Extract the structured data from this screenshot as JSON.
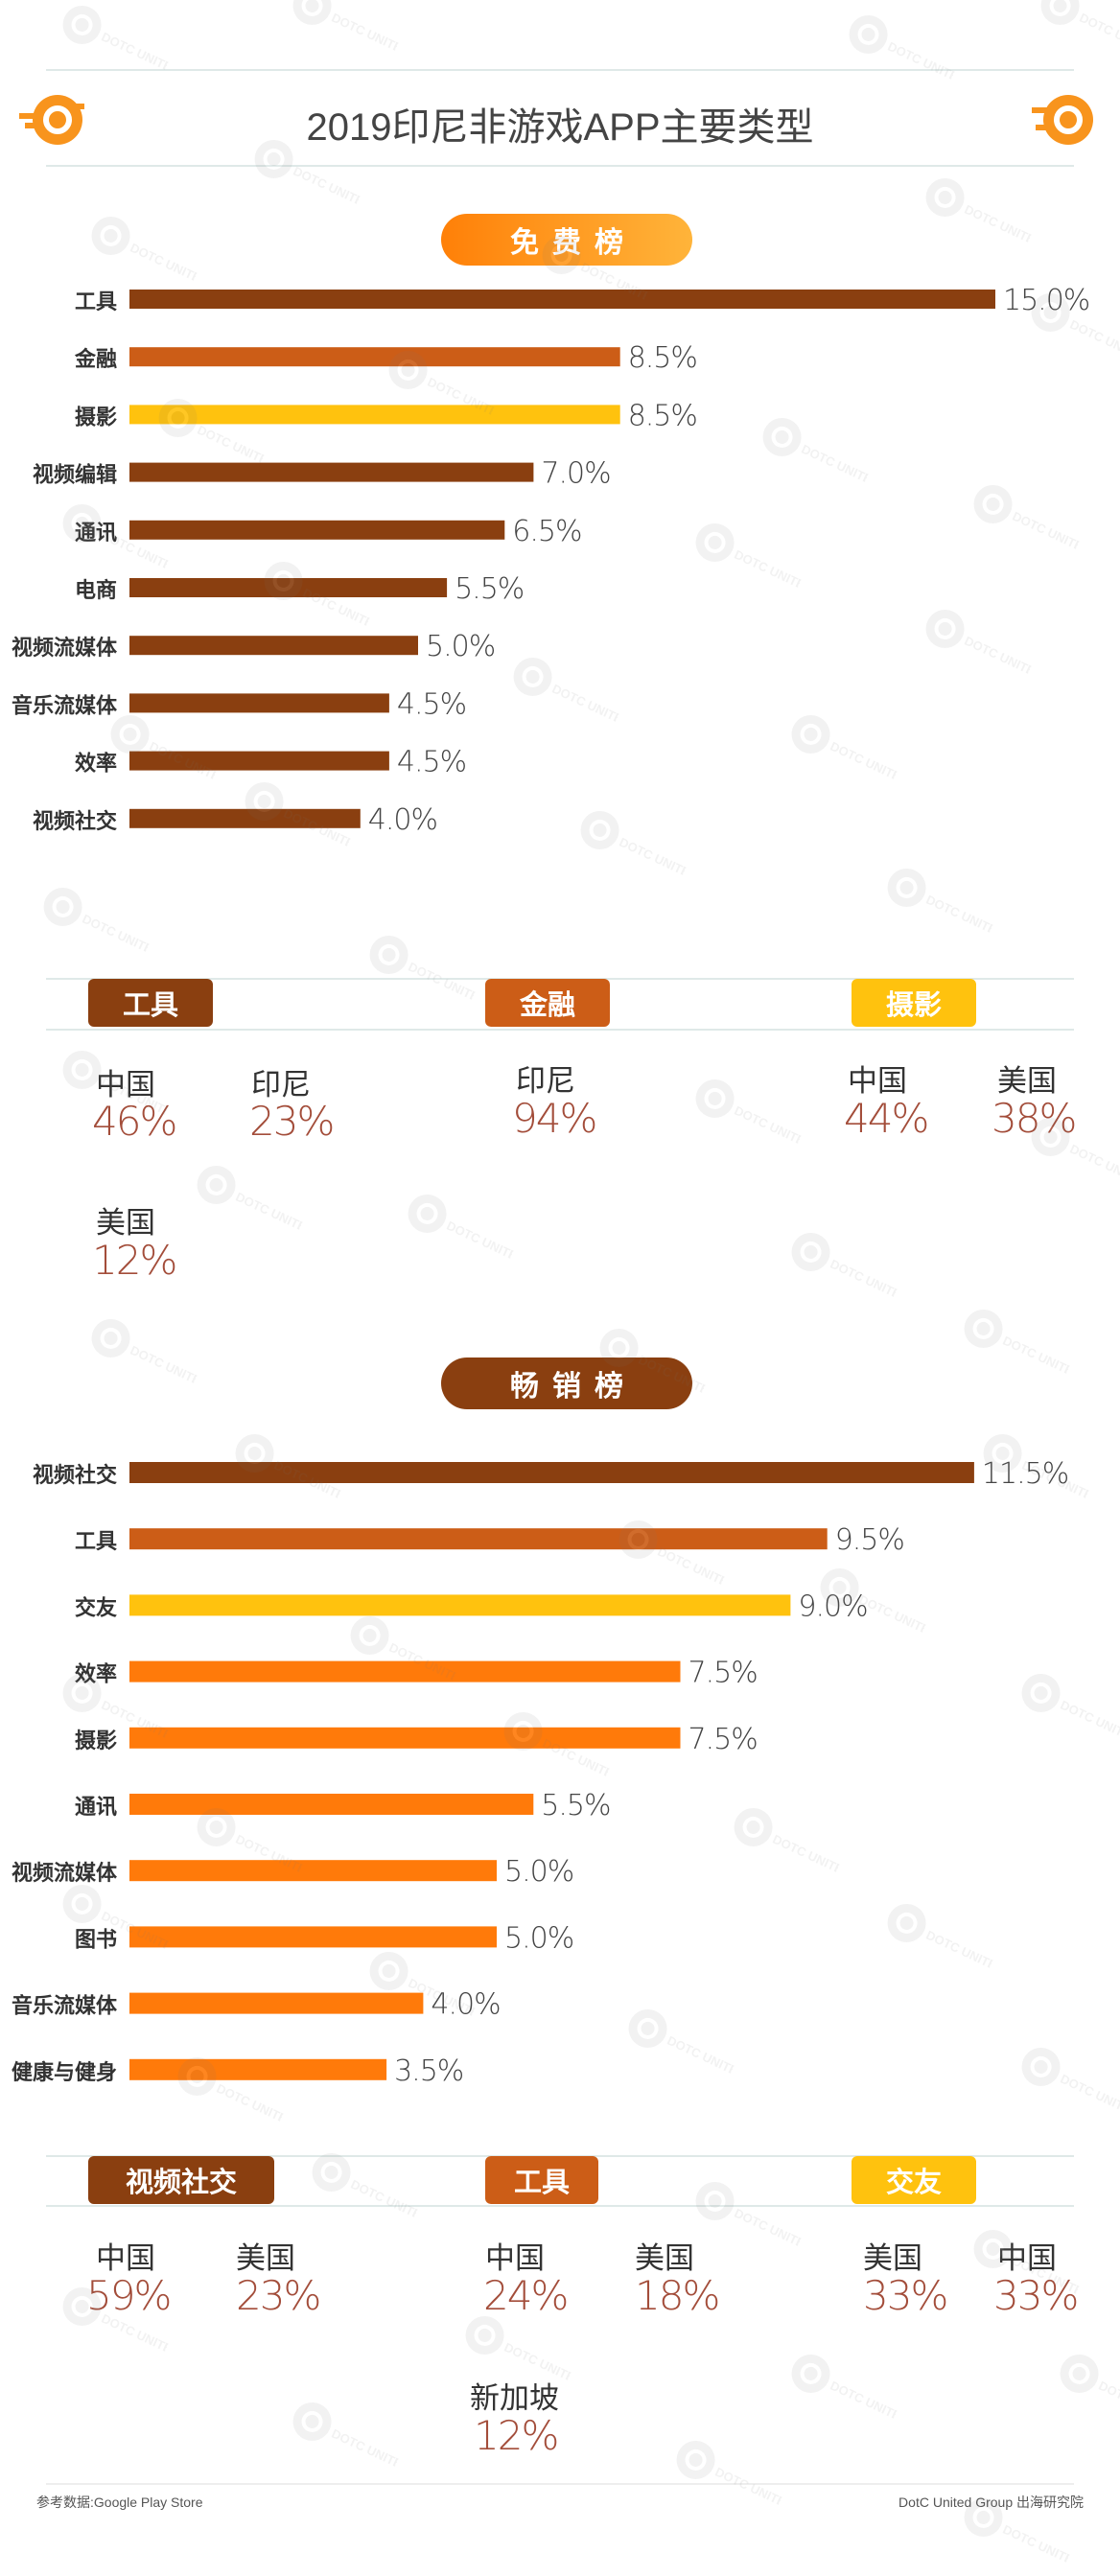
{
  "title": "2019印尼非游戏APP主要类型",
  "colors": {
    "dark": "#8a3f10",
    "mid": "#cc5d17",
    "yellow": "#ffc20e",
    "orange": "#ff7a0a",
    "accent": "#f8941d",
    "pct": "#a34d3a"
  },
  "chart_data": [
    {
      "type": "bar",
      "orientation": "horizontal",
      "title": "免费榜",
      "categories": [
        "工具",
        "金融",
        "摄影",
        "视频编辑",
        "通讯",
        "电商",
        "视频流媒体",
        "音乐流媒体",
        "效率",
        "视频社交"
      ],
      "values": [
        15.0,
        8.5,
        8.5,
        7.0,
        6.5,
        5.5,
        5.0,
        4.5,
        4.5,
        4.0
      ],
      "value_labels": [
        "15.0%",
        "8.5%",
        "8.5%",
        "7.0%",
        "6.5%",
        "5.5%",
        "5.0%",
        "4.5%",
        "4.5%",
        "4.0%"
      ],
      "bar_colors": [
        "#8a3f10",
        "#cc5d17",
        "#ffc20e",
        "#8a3f10",
        "#8a3f10",
        "#8a3f10",
        "#8a3f10",
        "#8a3f10",
        "#8a3f10",
        "#8a3f10"
      ],
      "unit": "%"
    },
    {
      "type": "bar",
      "orientation": "horizontal",
      "title": "畅销榜",
      "categories": [
        "视频社交",
        "工具",
        "交友",
        "效率",
        "摄影",
        "通讯",
        "视频流媒体",
        "图书",
        "音乐流媒体",
        "健康与健身"
      ],
      "values": [
        11.5,
        9.5,
        9.0,
        7.5,
        7.5,
        5.5,
        5.0,
        5.0,
        4.0,
        3.5
      ],
      "value_labels": [
        "11.5%",
        "9.5%",
        "9.0%",
        "7.5%",
        "7.5%",
        "5.5%",
        "5.0%",
        "5.0%",
        "4.0%",
        "3.5%"
      ],
      "bar_colors": [
        "#8a3f10",
        "#cc5d17",
        "#ffc20e",
        "#ff7a0a",
        "#ff7a0a",
        "#ff7a0a",
        "#ff7a0a",
        "#ff7a0a",
        "#ff7a0a",
        "#ff7a0a"
      ],
      "unit": "%"
    }
  ],
  "free": {
    "pill": "免费榜",
    "tags": [
      "工具",
      "金融",
      "摄影"
    ],
    "breakdown": {
      "tool": [
        {
          "country": "中国",
          "pct": "46%"
        },
        {
          "country": "印尼",
          "pct": "23%"
        },
        {
          "country": "美国",
          "pct": "12%"
        }
      ],
      "finance": [
        {
          "country": "印尼",
          "pct": "94%"
        }
      ],
      "photo": [
        {
          "country": "中国",
          "pct": "44%"
        },
        {
          "country": "美国",
          "pct": "38%"
        }
      ]
    }
  },
  "grossing": {
    "pill": "畅销榜",
    "tags": [
      "视频社交",
      "工具",
      "交友"
    ],
    "breakdown": {
      "social_video": [
        {
          "country": "中国",
          "pct": "59%"
        },
        {
          "country": "美国",
          "pct": "23%"
        }
      ],
      "tool": [
        {
          "country": "中国",
          "pct": "24%"
        },
        {
          "country": "美国",
          "pct": "18%"
        },
        {
          "country": "新加坡",
          "pct": "12%"
        }
      ],
      "dating": [
        {
          "country": "美国",
          "pct": "33%"
        },
        {
          "country": "中国",
          "pct": "33%"
        }
      ]
    }
  },
  "footer": {
    "source": "参考数据:Google Play Store",
    "brand": "DotC United Group  出海研究院"
  },
  "watermark_text": "DOTC UNITED"
}
